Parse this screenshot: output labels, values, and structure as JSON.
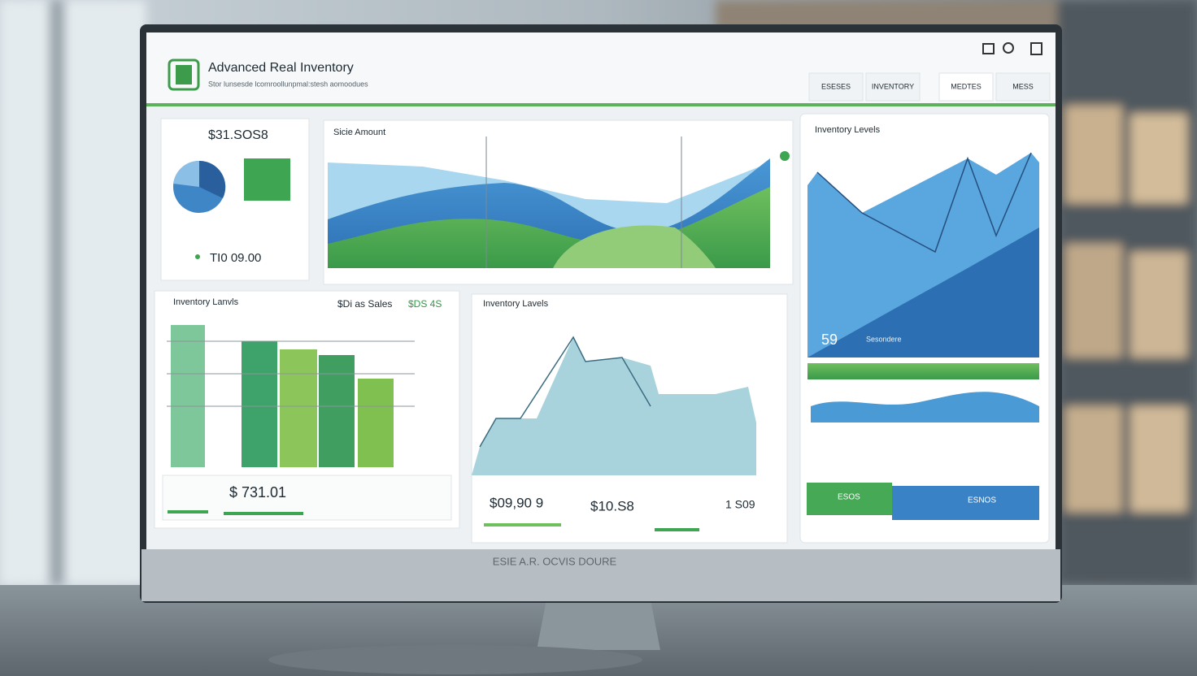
{
  "header": {
    "title": "Advanced Real Inventory",
    "subtitle": "Stor lunsesde lcomroollunpmal:stesh aomoodues"
  },
  "tabs": [
    "ESESES",
    "INVENTORY",
    "MEDTES",
    "MESS"
  ],
  "panels": {
    "summary": {
      "amount": "$31.SOS8",
      "total": "TI0 09.00"
    },
    "sales": {
      "title": "Sicie Amount"
    },
    "inventory": {
      "title": "Inventory Levels",
      "stat": "59",
      "stat_label": "Sesondere",
      "bottom_left": "ESOS",
      "bottom_right": "ESNOS"
    },
    "levels": {
      "title": "Inventory Lanvls",
      "sales_label": "$Di as Sales",
      "sales_value": "$DS 4S",
      "amount": "$ 731.01"
    },
    "trend": {
      "title": "Inventory Lavels",
      "stat_1": "$09,90 9",
      "stat_2": "$10.S8",
      "stat_3": "1 S09"
    }
  },
  "stand_label": "ESIE A.R. OCVIS DOURE"
}
